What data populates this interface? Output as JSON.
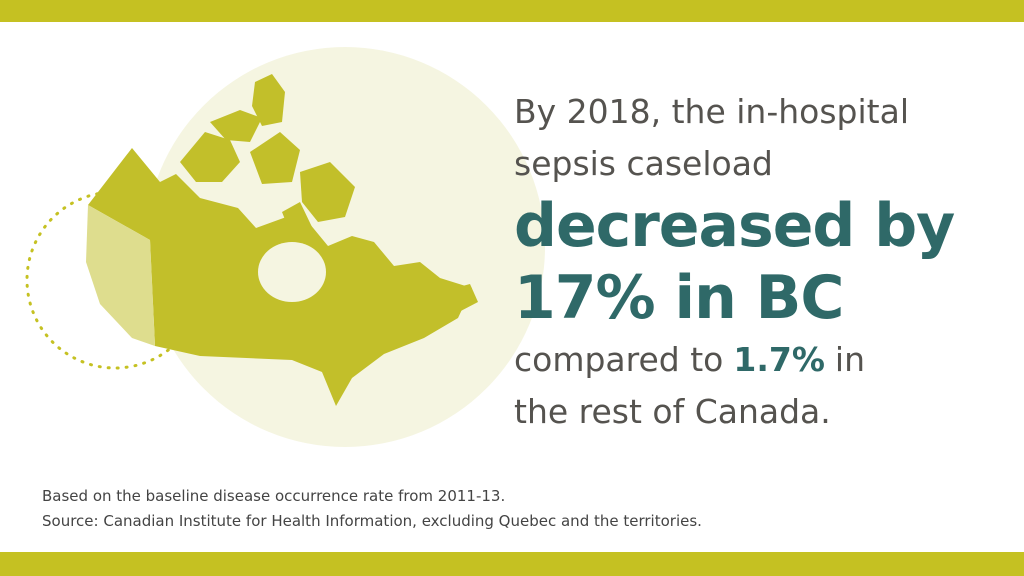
{
  "headline": {
    "lines": [
      "By 2018, the in-hospital",
      "sepsis caseload"
    ]
  },
  "emphasis": {
    "lines": [
      "decreased by",
      "17% in BC"
    ]
  },
  "comparison": {
    "lead": "compared to",
    "figure": "1.7%",
    "tail": "in",
    "rest": "the rest of Canada."
  },
  "notes": [
    "Based on the baseline disease occurrence rate from 2011-13.",
    "Source: Canadian Institute for Health Information, excluding Quebec and the territories."
  ]
}
